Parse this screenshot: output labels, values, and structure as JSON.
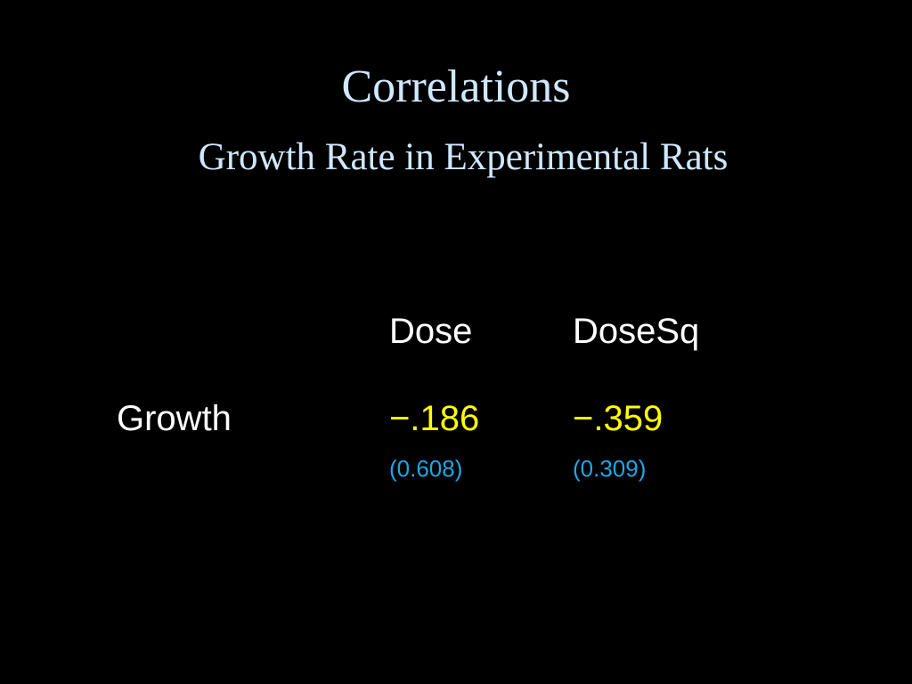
{
  "slide": {
    "title": "Correlations",
    "subtitle": "Growth Rate in Experimental Rats"
  },
  "table": {
    "columns": [
      "Dose",
      "DoseSq"
    ],
    "rows": [
      {
        "label": "Growth",
        "values": [
          "−.186",
          "−.359"
        ],
        "p_values": [
          "(0.608)",
          "(0.309)"
        ]
      }
    ]
  },
  "colors": {
    "background": "#000000",
    "title": "#cfe8ff",
    "text": "#ffffff",
    "value": "#ffff00",
    "p_value": "#1fa5e8"
  }
}
